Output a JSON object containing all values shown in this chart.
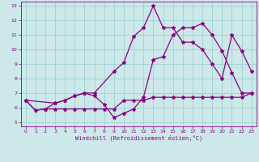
{
  "xlabel": "Windchill (Refroidissement éolien,°C)",
  "background_color": "#cce8e8",
  "line_color": "#880088",
  "grid_color": "#99cccc",
  "xlim": [
    -0.5,
    23.5
  ],
  "ylim": [
    4.7,
    13.3
  ],
  "yticks": [
    5,
    6,
    7,
    8,
    9,
    10,
    11,
    12,
    13
  ],
  "xticks": [
    0,
    1,
    2,
    3,
    4,
    5,
    6,
    7,
    8,
    9,
    10,
    11,
    12,
    13,
    14,
    15,
    16,
    17,
    18,
    19,
    20,
    21,
    22,
    23
  ],
  "line1_x": [
    0,
    1,
    2,
    3,
    4,
    5,
    6,
    7,
    8,
    9,
    10,
    11,
    12,
    13,
    14,
    15,
    16,
    17,
    18,
    19,
    20,
    21,
    22,
    23
  ],
  "line1_y": [
    6.5,
    5.8,
    5.9,
    5.9,
    5.9,
    5.9,
    5.9,
    5.9,
    5.9,
    5.9,
    6.5,
    6.5,
    6.5,
    6.7,
    6.7,
    6.7,
    6.7,
    6.7,
    6.7,
    6.7,
    6.7,
    6.7,
    6.7,
    7.0
  ],
  "line2_x": [
    0,
    1,
    2,
    3,
    4,
    5,
    6,
    7,
    8,
    9,
    10,
    11,
    12,
    13,
    14,
    15,
    16,
    17,
    18,
    19,
    20,
    21,
    22,
    23
  ],
  "line2_y": [
    6.5,
    5.8,
    5.9,
    6.3,
    6.5,
    6.8,
    7.0,
    6.8,
    6.2,
    5.3,
    5.6,
    5.9,
    6.7,
    9.3,
    9.5,
    11.0,
    11.5,
    11.5,
    11.8,
    11.0,
    9.9,
    8.4,
    7.0,
    7.0
  ],
  "line3_x": [
    0,
    3,
    4,
    5,
    6,
    7,
    9,
    10,
    11,
    12,
    13,
    14,
    15,
    16,
    17,
    18,
    19,
    20,
    21,
    22,
    23
  ],
  "line3_y": [
    6.5,
    6.3,
    6.5,
    6.8,
    7.0,
    7.0,
    8.5,
    9.1,
    10.9,
    11.5,
    13.0,
    11.5,
    11.5,
    10.5,
    10.5,
    10.0,
    9.0,
    8.0,
    11.0,
    9.9,
    8.5
  ]
}
